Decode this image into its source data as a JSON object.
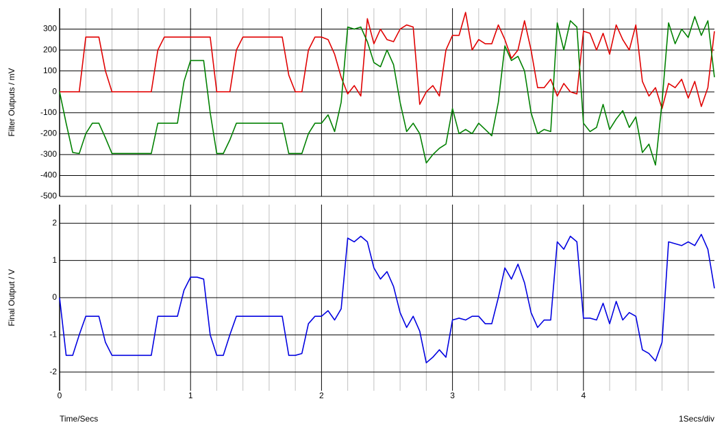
{
  "chart_data": [
    {
      "type": "line",
      "ylabel": "Filter Outputs / mV",
      "xlim": [
        0,
        5
      ],
      "xticks": [
        0,
        1,
        2,
        3,
        4
      ],
      "xtick_labels": false,
      "xminorticks": [
        0.2,
        0.4,
        0.6,
        0.8,
        1.2,
        1.4,
        1.6,
        1.8,
        2.2,
        2.4,
        2.6,
        2.8,
        3.2,
        3.4,
        3.6,
        3.8,
        4.2,
        4.4,
        4.6,
        4.8
      ],
      "ylim": [
        -500,
        400
      ],
      "yticks": [
        -500,
        -400,
        -300,
        -200,
        -100,
        0,
        100,
        200,
        300
      ],
      "grid": true,
      "x": [
        0,
        0.05,
        0.1,
        0.15,
        0.2,
        0.25,
        0.3,
        0.35,
        0.4,
        0.45,
        0.5,
        0.55,
        0.6,
        0.65,
        0.7,
        0.75,
        0.8,
        0.85,
        0.9,
        0.95,
        1,
        1.05,
        1.1,
        1.15,
        1.2,
        1.25,
        1.3,
        1.35,
        1.4,
        1.45,
        1.5,
        1.55,
        1.6,
        1.65,
        1.7,
        1.75,
        1.8,
        1.85,
        1.9,
        1.95,
        2,
        2.05,
        2.1,
        2.15,
        2.2,
        2.25,
        2.3,
        2.35,
        2.4,
        2.45,
        2.5,
        2.55,
        2.6,
        2.65,
        2.7,
        2.75,
        2.8,
        2.85,
        2.9,
        2.95,
        3,
        3.05,
        3.1,
        3.15,
        3.2,
        3.25,
        3.3,
        3.35,
        3.4,
        3.45,
        3.5,
        3.55,
        3.6,
        3.65,
        3.7,
        3.75,
        3.8,
        3.85,
        3.9,
        3.95,
        4,
        4.05,
        4.1,
        4.15,
        4.2,
        4.25,
        4.3,
        4.35,
        4.4,
        4.45,
        4.5,
        4.55,
        4.6,
        4.65,
        4.7,
        4.75,
        4.8,
        4.85,
        4.9,
        4.95,
        5
      ],
      "series": [
        {
          "color": "#e00000",
          "values": [
            0,
            0,
            0,
            0,
            262,
            262,
            262,
            100,
            0,
            0,
            0,
            0,
            0,
            0,
            0,
            200,
            262,
            262,
            262,
            262,
            262,
            262,
            262,
            262,
            0,
            0,
            0,
            200,
            262,
            262,
            262,
            262,
            262,
            262,
            262,
            80,
            0,
            0,
            200,
            262,
            262,
            250,
            180,
            70,
            -10,
            30,
            -20,
            350,
            230,
            300,
            250,
            240,
            300,
            320,
            310,
            -60,
            0,
            30,
            -20,
            200,
            270,
            270,
            380,
            200,
            250,
            230,
            230,
            320,
            250,
            160,
            200,
            340,
            200,
            20,
            20,
            60,
            -20,
            40,
            0,
            -10,
            290,
            280,
            200,
            280,
            180,
            320,
            250,
            200,
            320,
            50,
            -20,
            20,
            -80,
            40,
            20,
            60,
            -30,
            50,
            -70,
            20,
            290
          ]
        },
        {
          "color": "#008000",
          "values": [
            0,
            -150,
            -290,
            -295,
            -200,
            -150,
            -150,
            -220,
            -295,
            -295,
            -295,
            -295,
            -295,
            -295,
            -295,
            -150,
            -150,
            -150,
            -150,
            50,
            150,
            150,
            150,
            -100,
            -295,
            -295,
            -230,
            -150,
            -150,
            -150,
            -150,
            -150,
            -150,
            -150,
            -150,
            -295,
            -295,
            -295,
            -200,
            -150,
            -150,
            -110,
            -190,
            -50,
            310,
            300,
            310,
            240,
            140,
            120,
            200,
            130,
            -50,
            -190,
            -150,
            -200,
            -340,
            -300,
            -270,
            -250,
            -80,
            -200,
            -180,
            -200,
            -150,
            -180,
            -210,
            -50,
            220,
            150,
            170,
            100,
            -100,
            -200,
            -180,
            -190,
            330,
            200,
            340,
            310,
            -150,
            -190,
            -170,
            -60,
            -180,
            -130,
            -90,
            -170,
            -120,
            -290,
            -250,
            -350,
            -50,
            330,
            230,
            300,
            260,
            360,
            270,
            340,
            70
          ]
        }
      ]
    },
    {
      "type": "line",
      "ylabel": "Final Output / V",
      "xlabel": "Time/Secs",
      "scale_label": "1Secs/div",
      "xlim": [
        0,
        5
      ],
      "xticks": [
        0,
        1,
        2,
        3,
        4
      ],
      "xtick_labels": true,
      "xminorticks": [
        0.2,
        0.4,
        0.6,
        0.8,
        1.2,
        1.4,
        1.6,
        1.8,
        2.2,
        2.4,
        2.6,
        2.8,
        3.2,
        3.4,
        3.6,
        3.8,
        4.2,
        4.4,
        4.6,
        4.8
      ],
      "ylim": [
        -2.5,
        2.5
      ],
      "yticks": [
        -2,
        -1,
        0,
        1,
        2
      ],
      "grid": true,
      "x": [
        0,
        0.05,
        0.1,
        0.15,
        0.2,
        0.25,
        0.3,
        0.35,
        0.4,
        0.45,
        0.5,
        0.55,
        0.6,
        0.65,
        0.7,
        0.75,
        0.8,
        0.85,
        0.9,
        0.95,
        1,
        1.05,
        1.1,
        1.15,
        1.2,
        1.25,
        1.3,
        1.35,
        1.4,
        1.45,
        1.5,
        1.55,
        1.6,
        1.65,
        1.7,
        1.75,
        1.8,
        1.85,
        1.9,
        1.95,
        2,
        2.05,
        2.1,
        2.15,
        2.2,
        2.25,
        2.3,
        2.35,
        2.4,
        2.45,
        2.5,
        2.55,
        2.6,
        2.65,
        2.7,
        2.75,
        2.8,
        2.85,
        2.9,
        2.95,
        3,
        3.05,
        3.1,
        3.15,
        3.2,
        3.25,
        3.3,
        3.35,
        3.4,
        3.45,
        3.5,
        3.55,
        3.6,
        3.65,
        3.7,
        3.75,
        3.8,
        3.85,
        3.9,
        3.95,
        4,
        4.05,
        4.1,
        4.15,
        4.2,
        4.25,
        4.3,
        4.35,
        4.4,
        4.45,
        4.5,
        4.55,
        4.6,
        4.65,
        4.7,
        4.75,
        4.8,
        4.85,
        4.9,
        4.95,
        5
      ],
      "series": [
        {
          "color": "#0000e0",
          "values": [
            0,
            -1.55,
            -1.55,
            -1.0,
            -0.5,
            -0.5,
            -0.5,
            -1.2,
            -1.55,
            -1.55,
            -1.55,
            -1.55,
            -1.55,
            -1.55,
            -1.55,
            -0.5,
            -0.5,
            -0.5,
            -0.5,
            0.2,
            0.55,
            0.55,
            0.5,
            -1.0,
            -1.55,
            -1.55,
            -1.0,
            -0.5,
            -0.5,
            -0.5,
            -0.5,
            -0.5,
            -0.5,
            -0.5,
            -0.5,
            -1.55,
            -1.55,
            -1.5,
            -0.7,
            -0.5,
            -0.5,
            -0.35,
            -0.6,
            -0.3,
            1.6,
            1.5,
            1.65,
            1.5,
            0.8,
            0.5,
            0.7,
            0.3,
            -0.4,
            -0.8,
            -0.5,
            -0.9,
            -1.75,
            -1.6,
            -1.4,
            -1.6,
            -0.6,
            -0.55,
            -0.6,
            -0.5,
            -0.5,
            -0.7,
            -0.7,
            0,
            0.8,
            0.5,
            0.9,
            0.4,
            -0.4,
            -0.8,
            -0.6,
            -0.6,
            1.5,
            1.3,
            1.65,
            1.5,
            -0.55,
            -0.55,
            -0.6,
            -0.15,
            -0.7,
            -0.1,
            -0.6,
            -0.4,
            -0.5,
            -1.4,
            -1.5,
            -1.7,
            -1.2,
            1.5,
            1.45,
            1.4,
            1.5,
            1.4,
            1.7,
            1.3,
            0.25
          ]
        }
      ]
    }
  ]
}
